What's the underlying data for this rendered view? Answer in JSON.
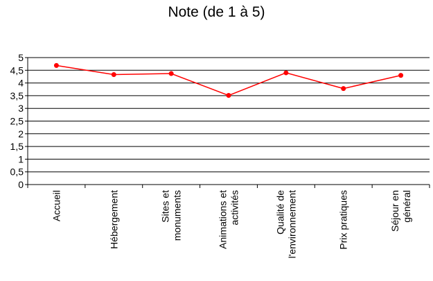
{
  "chart_data": {
    "type": "line",
    "title": "Note (de 1 à 5)",
    "xlabel": "",
    "ylabel": "",
    "ylim": [
      0,
      5
    ],
    "yticks": [
      0,
      0.5,
      1,
      1.5,
      2,
      2.5,
      3,
      3.5,
      4,
      4.5,
      5
    ],
    "ytick_labels": [
      "0",
      "0,5",
      "1",
      "1,5",
      "2",
      "2,5",
      "3",
      "3,5",
      "4",
      "4,5",
      "5"
    ],
    "categories": [
      [
        "Accueil"
      ],
      [
        "Hébergement"
      ],
      [
        "Sites et",
        "monuments"
      ],
      [
        "Animations et",
        "activités"
      ],
      [
        "Qualité de",
        "l'environnement"
      ],
      [
        "Prix pratiques"
      ],
      [
        "Séjour en",
        "général"
      ]
    ],
    "series": [
      {
        "values": [
          4.69,
          4.33,
          4.37,
          3.51,
          4.4,
          3.78,
          4.3
        ],
        "color": "#ff0000"
      }
    ],
    "grid": true,
    "legend": "none"
  }
}
